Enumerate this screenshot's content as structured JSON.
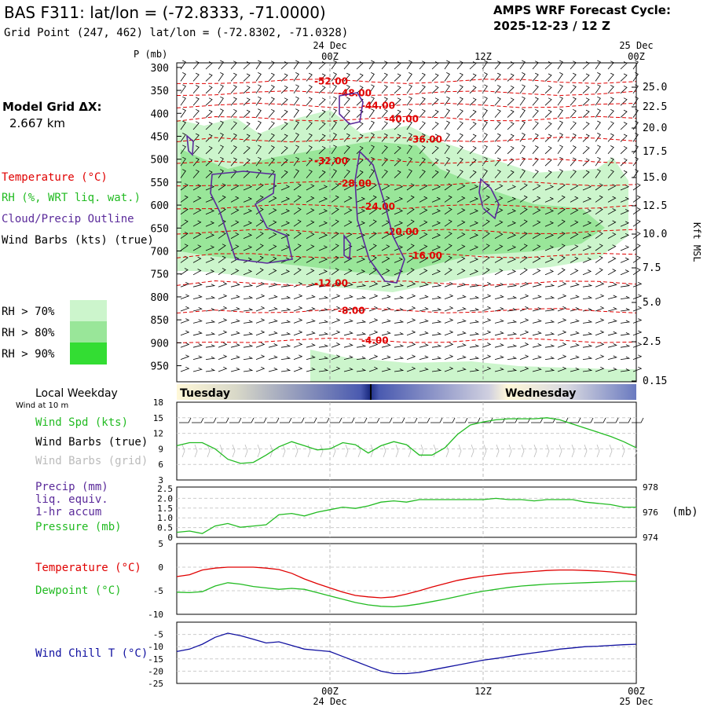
{
  "header": {
    "title": "BAS F311:  lat/lon = (-72.8333, -71.0000)",
    "subtitle": "Grid Point (247, 462) lat/lon = (-72.8302, -71.0328)",
    "cycle_label": "AMPS WRF Forecast Cycle:",
    "cycle_value": "2025-12-23 / 12  Z"
  },
  "left_legend": {
    "model_grid_label": "Model Grid ΔX:",
    "model_grid_value": "2.667 km",
    "temperature": "Temperature (°C)",
    "rh": "RH (%, WRT liq. wat.)",
    "cloud": "Cloud/Precip Outline",
    "wind_barbs": "Wind Barbs (kts) (true)",
    "rh70": "RH > 70%",
    "rh80": "RH > 80%",
    "rh90": "RH > 90%",
    "local_weekday": "Local Weekday",
    "wind_10m": "Wind at 10 m"
  },
  "colors": {
    "temperature": "#e00000",
    "rh": "#22bb22",
    "cloud": "#5a2a9a",
    "wind_chill": "#1010a0",
    "rh70": "#ccf5cc",
    "rh80": "#99e699",
    "rh90": "#33dd33",
    "grey_barbs": "#bbbbbb"
  },
  "chart_data": [
    {
      "type": "line",
      "name": "cross_section",
      "ylabel": "P (mb)",
      "pressure_ticks": [
        "300",
        "350",
        "400",
        "450",
        "500",
        "550",
        "600",
        "650",
        "700",
        "750",
        "800",
        "850",
        "900",
        "950"
      ],
      "right_axis_label": "Kft MSL",
      "right_ticks": [
        "25.0",
        "22.5",
        "20.0",
        "17.5",
        "15.0",
        "12.5",
        "10.0",
        "7.5",
        "5.0",
        "2.5",
        "0.15"
      ],
      "top_time_labels": [
        {
          "hour": 12,
          "date": "24 Dec",
          "time": "00Z"
        },
        {
          "hour": 24,
          "date": "",
          "time": "12Z"
        },
        {
          "hour": 36,
          "date": "25 Dec",
          "time": "00Z"
        }
      ],
      "temperature_contours": [
        {
          "label": "-52.00",
          "level": 330
        },
        {
          "label": "-48.00",
          "level": 356
        },
        {
          "label": "-44.00",
          "level": 383
        },
        {
          "label": "-40.00",
          "level": 412
        },
        {
          "label": "-36.00",
          "level": 457
        },
        {
          "label": "-32.00",
          "level": 504
        },
        {
          "label": "-28.00",
          "level": 553
        },
        {
          "label": "-24.00",
          "level": 603
        },
        {
          "label": "-20.00",
          "level": 658
        },
        {
          "label": "-16.00",
          "level": 710
        },
        {
          "label": "-12.00",
          "level": 770
        },
        {
          "label": "-8.00",
          "level": 830
        },
        {
          "label": "-4.00",
          "level": 895
        }
      ]
    },
    {
      "type": "line",
      "name": "weekday_band",
      "labels": [
        "Tuesday",
        "Wednesday"
      ]
    },
    {
      "type": "line",
      "name": "wind_speed",
      "series_labels": [
        "Wind Spd (kts)",
        "Wind Barbs (true)",
        "Wind Barbs (grid)"
      ],
      "yticks": [
        "18",
        "15",
        "12",
        "9",
        "6",
        "3"
      ],
      "ylim": [
        3,
        18
      ],
      "x": [
        0,
        1,
        2,
        3,
        4,
        5,
        6,
        7,
        8,
        9,
        10,
        11,
        12,
        13,
        14,
        15,
        16,
        17,
        18,
        19,
        20,
        21,
        22,
        23,
        24,
        25,
        26,
        27,
        28,
        29,
        30,
        31,
        32,
        33,
        34,
        35,
        36
      ],
      "values": [
        9.6,
        10.2,
        10.2,
        9,
        7,
        6.2,
        6.4,
        7.8,
        9.4,
        10.4,
        9.6,
        8.8,
        9,
        10.2,
        9.8,
        8.2,
        9.6,
        10.4,
        9.8,
        7.8,
        7.8,
        9.2,
        11.8,
        13.6,
        14.2,
        14.6,
        14.8,
        14.8,
        14.8,
        15,
        14.6,
        13.8,
        13,
        12.2,
        11.4,
        10.4,
        9.2
      ]
    },
    {
      "type": "line",
      "name": "precip_pressure",
      "series_labels": [
        "Precip (mm)",
        "liq. equiv.",
        "1-hr accum",
        "Pressure (mb)"
      ],
      "right_unit": "(mb)",
      "left_ticks": [
        "2.5",
        "2.0",
        "1.5",
        "1.0",
        "0.5",
        "0"
      ],
      "right_ticks": [
        "978",
        "976",
        "974"
      ],
      "ylim": [
        974,
        978
      ],
      "x": [
        0,
        1,
        2,
        3,
        4,
        5,
        6,
        7,
        8,
        9,
        10,
        11,
        12,
        13,
        14,
        15,
        16,
        17,
        18,
        19,
        20,
        21,
        22,
        23,
        24,
        25,
        26,
        27,
        28,
        29,
        30,
        31,
        32,
        33,
        34,
        35,
        36
      ],
      "values": [
        974.4,
        974.5,
        974.3,
        974.9,
        975.1,
        974.8,
        974.9,
        975,
        975.8,
        975.9,
        975.7,
        976,
        976.2,
        976.4,
        976.3,
        976.5,
        976.8,
        976.9,
        976.8,
        977,
        977,
        977,
        977,
        977,
        977,
        977.1,
        977,
        977,
        976.9,
        977,
        977,
        977,
        976.8,
        976.7,
        976.6,
        976.4,
        976.4
      ]
    },
    {
      "type": "line",
      "name": "temperature_dewpoint",
      "series": [
        {
          "name": "Temperature (°C)",
          "values": [
            -2,
            -1.6,
            -0.6,
            -0.2,
            0,
            0,
            0,
            -0.2,
            -0.5,
            -1.3,
            -2.5,
            -3.5,
            -4.4,
            -5.3,
            -6,
            -6.3,
            -6.5,
            -6.3,
            -5.7,
            -5,
            -4.2,
            -3.5,
            -2.8,
            -2.3,
            -1.9,
            -1.6,
            -1.3,
            -1.1,
            -0.9,
            -0.7,
            -0.6,
            -0.6,
            -0.7,
            -0.8,
            -1,
            -1.3,
            -1.7
          ]
        },
        {
          "name": "Dewpoint (°C)",
          "values": [
            -5.3,
            -5.4,
            -5.2,
            -4,
            -3.3,
            -3.6,
            -4.1,
            -4.4,
            -4.7,
            -4.5,
            -4.7,
            -5.4,
            -6.1,
            -6.8,
            -7.5,
            -8,
            -8.3,
            -8.4,
            -8.2,
            -7.8,
            -7.3,
            -6.8,
            -6.2,
            -5.6,
            -5.1,
            -4.7,
            -4.3,
            -4,
            -3.8,
            -3.6,
            -3.5,
            -3.4,
            -3.3,
            -3.2,
            -3.1,
            -3,
            -3
          ]
        }
      ],
      "yticks": [
        "5",
        "0",
        "-5",
        "-10"
      ],
      "ylim": [
        -10,
        5
      ],
      "x": [
        0,
        1,
        2,
        3,
        4,
        5,
        6,
        7,
        8,
        9,
        10,
        11,
        12,
        13,
        14,
        15,
        16,
        17,
        18,
        19,
        20,
        21,
        22,
        23,
        24,
        25,
        26,
        27,
        28,
        29,
        30,
        31,
        32,
        33,
        34,
        35,
        36
      ]
    },
    {
      "type": "line",
      "name": "wind_chill",
      "series": [
        {
          "name": "Wind Chill T (°C)",
          "values": [
            -12,
            -11,
            -9,
            -6.2,
            -4.5,
            -5.5,
            -7,
            -8.5,
            -8,
            -9.5,
            -11,
            -11.5,
            -12,
            -14,
            -16,
            -18,
            -20,
            -21,
            -21,
            -20.5,
            -19.5,
            -18.5,
            -17.5,
            -16.5,
            -15.5,
            -14.8,
            -14,
            -13.2,
            -12.5,
            -11.8,
            -11,
            -10.5,
            -10,
            -9.8,
            -9.5,
            -9.2,
            -9
          ]
        }
      ],
      "yticks": [
        "-5",
        "-10",
        "-15",
        "-20",
        "-25"
      ],
      "ylim": [
        -25,
        0
      ],
      "x": [
        0,
        1,
        2,
        3,
        4,
        5,
        6,
        7,
        8,
        9,
        10,
        11,
        12,
        13,
        14,
        15,
        16,
        17,
        18,
        19,
        20,
        21,
        22,
        23,
        24,
        25,
        26,
        27,
        28,
        29,
        30,
        31,
        32,
        33,
        34,
        35,
        36
      ],
      "bottom_time_labels": [
        {
          "hour": 12,
          "time": "00Z",
          "date": "24 Dec"
        },
        {
          "hour": 24,
          "time": "12Z",
          "date": ""
        },
        {
          "hour": 36,
          "time": "00Z",
          "date": "25 Dec"
        }
      ]
    }
  ]
}
